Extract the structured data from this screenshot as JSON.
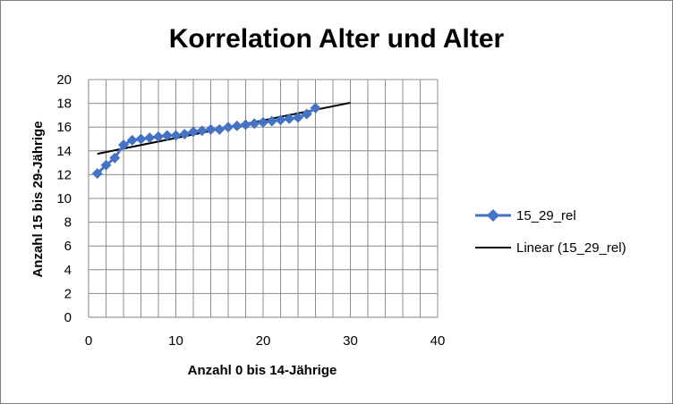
{
  "chart_data": {
    "type": "scatter",
    "title": "Korrelation Alter und Alter",
    "xlabel": "Anzahl 0 bis 14-Jährige",
    "ylabel": "Anzahl 15 bis 29-Jährige",
    "xlim": [
      0,
      40
    ],
    "ylim": [
      0,
      20
    ],
    "xticks": [
      "0",
      "10",
      "20",
      "30",
      "40"
    ],
    "yticks": [
      "0",
      "2",
      "4",
      "6",
      "8",
      "10",
      "12",
      "14",
      "16",
      "18",
      "20"
    ],
    "grid": true,
    "legend_position": "right",
    "series": [
      {
        "name": "15_29_rel",
        "color": "#4472C4",
        "marker": "diamond",
        "x": [
          1,
          2,
          3,
          4,
          5,
          6,
          7,
          8,
          9,
          10,
          11,
          12,
          13,
          14,
          15,
          16,
          17,
          18,
          19,
          20,
          21,
          22,
          23,
          24,
          25,
          26
        ],
        "y": [
          12.1,
          12.8,
          13.4,
          14.5,
          14.9,
          15.0,
          15.1,
          15.2,
          15.3,
          15.3,
          15.4,
          15.6,
          15.7,
          15.8,
          15.8,
          16.0,
          16.1,
          16.2,
          16.3,
          16.4,
          16.5,
          16.6,
          16.7,
          16.8,
          17.1,
          17.6
        ]
      },
      {
        "name": "Linear (15_29_rel)",
        "color": "#000000",
        "type": "trendline",
        "x": [
          1,
          30
        ],
        "y": [
          13.75,
          18.05
        ]
      }
    ]
  }
}
